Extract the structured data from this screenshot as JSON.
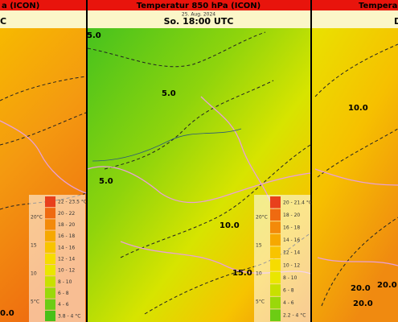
{
  "panels": [
    {
      "title": "a (ICON)",
      "time": "C",
      "contour_labels": [
        "0.0"
      ],
      "legend": {
        "ranges": [
          "22 - 23.5 °C",
          "20 - 22",
          "18 - 20",
          "16 - 18",
          "14 - 16",
          "12 - 14",
          "10 - 12",
          "8 - 10",
          "6 - 8",
          "4 - 6",
          "3.8 - 4 °C"
        ],
        "scale": [
          "20°C",
          "15",
          "10",
          "5°C"
        ]
      }
    },
    {
      "title": "Temperatur 850 hPa (ICON)",
      "date": "25. Aug. 2024",
      "time": "So. 18:00 UTC",
      "contour_labels": [
        "5.0",
        "5.0",
        "5.0",
        "10.0",
        "15.0"
      ],
      "legend": {
        "ranges": [
          "20 - 21.4 °C",
          "18 - 20",
          "16 - 18",
          "14 - 16",
          "12 - 14",
          "10 - 12",
          "8 - 10",
          "6 - 8",
          "4 - 6",
          "2.2 - 4 °C"
        ],
        "scale": [
          "20°C",
          "15",
          "10",
          "5°C"
        ]
      }
    },
    {
      "title": "Tempera",
      "time": "D",
      "contour_labels": [
        "10.0",
        "20.0",
        "20.0",
        "20.0"
      ]
    }
  ]
}
